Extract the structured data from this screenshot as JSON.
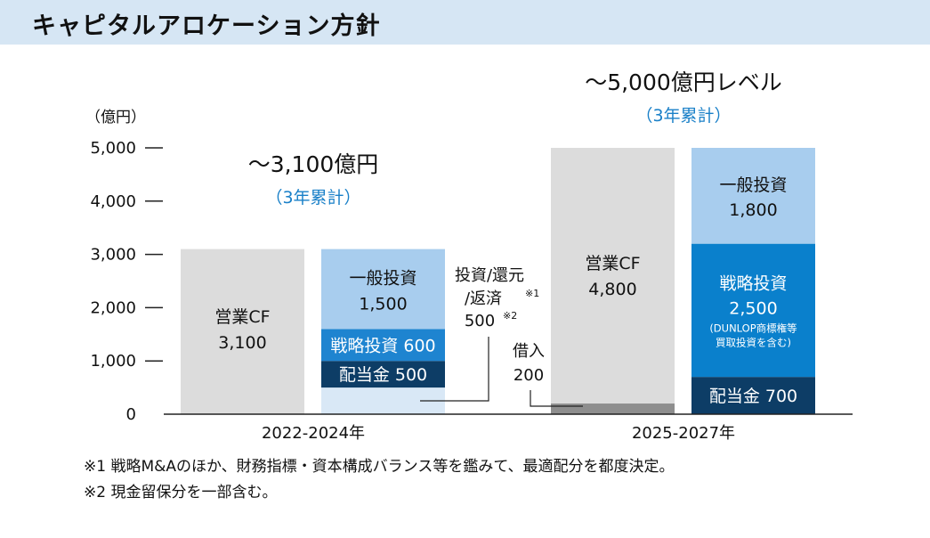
{
  "header": {
    "title": "キャピタルアロケーション方針"
  },
  "chart_data": {
    "type": "bar",
    "ylabel": "（億円）",
    "ylim": [
      0,
      5000
    ],
    "yticks": [
      "5,000",
      "4,000",
      "3,000",
      "2,000",
      "1,000",
      "0"
    ],
    "ytick_values": [
      5000,
      4000,
      3000,
      2000,
      1000,
      0
    ],
    "periods": [
      {
        "label": "2022-2024年",
        "total_label": "〜3,100億円",
        "total_sub": "（3年累計）",
        "inflow": {
          "name": "営業CF",
          "value": 3100,
          "value_label": "3,100"
        },
        "outflows": [
          {
            "name": "配当金",
            "value": 500,
            "label": "配当金 500",
            "color": "#0d3d66"
          },
          {
            "name": "戦略投資",
            "value": 600,
            "label": "戦略投資 600",
            "color": "#1e84d0"
          },
          {
            "name": "一般投資",
            "value": 1500,
            "label": "一般投資",
            "value_label": "1,500",
            "color": "#a8cdee"
          }
        ],
        "remainder": {
          "value": 500,
          "color": "#d9e8f6"
        },
        "annotation": {
          "line1": "投資/還元",
          "line2": "/返済",
          "mark1": "※1",
          "value": "500",
          "mark2": "※2"
        }
      },
      {
        "label": "2025-2027年",
        "total_label": "〜5,000億円レベル",
        "total_sub": "（3年累計）",
        "inflow": {
          "name": "営業CF",
          "value": 4800,
          "value_label": "4,800"
        },
        "borrowing": {
          "name": "借入",
          "value": 200,
          "value_label": "200",
          "color": "#8e8e8e"
        },
        "outflows": [
          {
            "name": "配当金",
            "value": 700,
            "label": "配当金 700",
            "color": "#0d3d66"
          },
          {
            "name": "戦略投資",
            "value": 2500,
            "label": "戦略投資",
            "value_label": "2,500",
            "note1": "(DUNLOP商標権等",
            "note2": "買取投資を含む)",
            "color": "#0a80cc"
          },
          {
            "name": "一般投資",
            "value": 1800,
            "label": "一般投資",
            "value_label": "1,800",
            "color": "#a8cdee"
          }
        ]
      }
    ]
  },
  "notes": [
    "※1 戦略M&Aのほか、財務指標・資本構成バランス等を鑑みて、最適配分を都度決定。",
    "※2 現金留保分を一部含む。"
  ],
  "colors": {
    "inflow": "#dcdcdc",
    "accent_blue": "#1a80c8"
  }
}
